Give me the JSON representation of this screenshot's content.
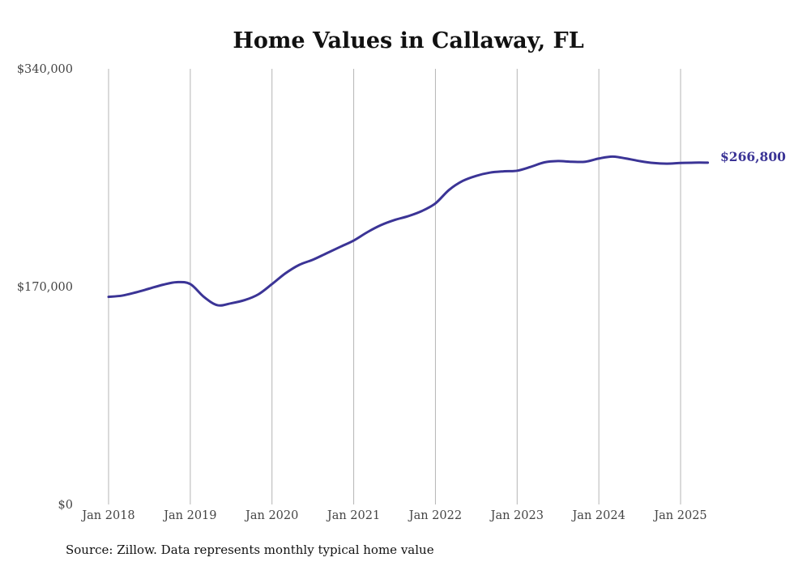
{
  "chart_data": {
    "type": "line",
    "title": "Home Values in Callaway, FL",
    "xlabel": "",
    "ylabel": "",
    "ylim": [
      0,
      340000
    ],
    "y_ticks": [
      "$0",
      "$170,000",
      "$340,000"
    ],
    "y_tick_values": [
      0,
      170000,
      340000
    ],
    "x_ticks": [
      "Jan 2018",
      "Jan 2019",
      "Jan 2020",
      "Jan 2021",
      "Jan 2022",
      "Jan 2023",
      "Jan 2024",
      "Jan 2025"
    ],
    "x_tick_dates": [
      "2018-01",
      "2019-01",
      "2020-01",
      "2021-01",
      "2022-01",
      "2023-01",
      "2024-01",
      "2025-01"
    ],
    "grid": "vertical",
    "line_color": "#3b3496",
    "end_label": "$266,800",
    "series": [
      {
        "name": "",
        "x": [
          "2018-01",
          "2018-03",
          "2018-05",
          "2018-07",
          "2018-09",
          "2018-11",
          "2019-01",
          "2019-03",
          "2019-05",
          "2019-07",
          "2019-09",
          "2019-11",
          "2020-01",
          "2020-03",
          "2020-05",
          "2020-07",
          "2020-09",
          "2020-11",
          "2021-01",
          "2021-03",
          "2021-05",
          "2021-07",
          "2021-09",
          "2021-11",
          "2022-01",
          "2022-03",
          "2022-05",
          "2022-07",
          "2022-09",
          "2022-11",
          "2023-01",
          "2023-03",
          "2023-05",
          "2023-07",
          "2023-09",
          "2023-11",
          "2024-01",
          "2024-03",
          "2024-05",
          "2024-07",
          "2024-09",
          "2024-11",
          "2025-01",
          "2025-03",
          "2025-05"
        ],
        "values": [
          162000,
          163000,
          165500,
          168500,
          171500,
          173500,
          172000,
          162000,
          155500,
          157000,
          159500,
          164000,
          172000,
          180500,
          187000,
          191000,
          196000,
          201000,
          206000,
          212500,
          218000,
          222000,
          225000,
          229000,
          235000,
          245500,
          252500,
          256500,
          259000,
          260000,
          260500,
          263500,
          267000,
          268000,
          267500,
          267500,
          270000,
          271500,
          270000,
          268000,
          266500,
          266000,
          266500,
          266800,
          266800
        ]
      }
    ],
    "source_note": "Source: Zillow. Data represents monthly typical home value"
  }
}
